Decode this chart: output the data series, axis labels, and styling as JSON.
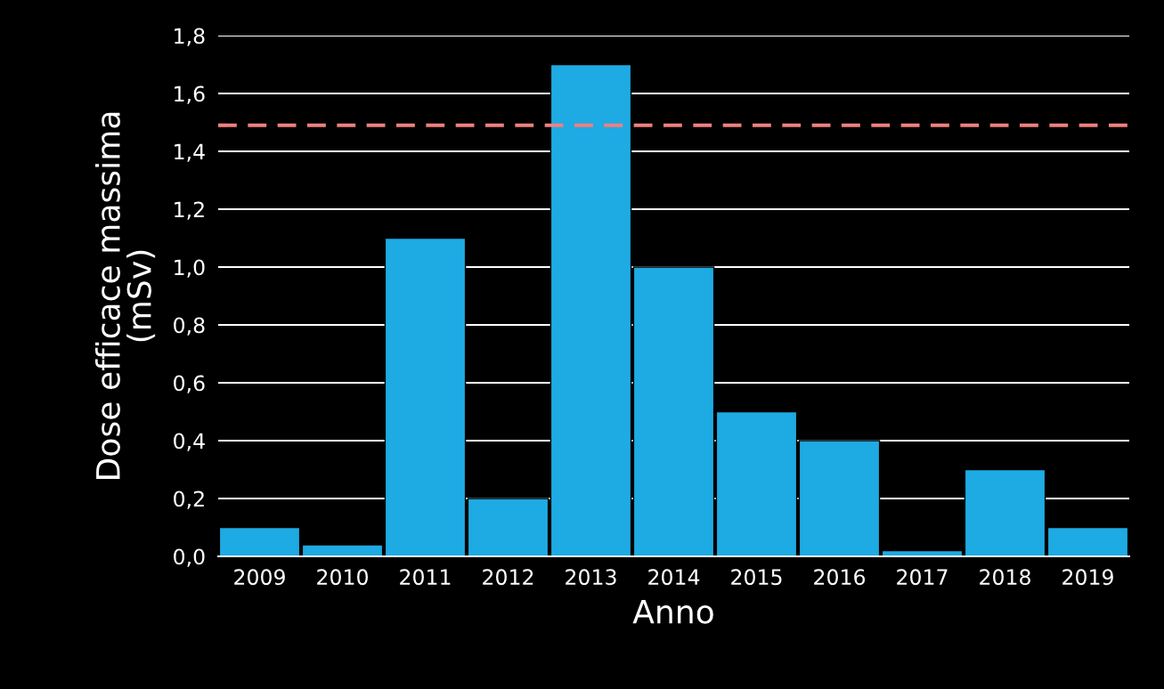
{
  "chart_data": {
    "type": "bar",
    "xlabel": "Anno",
    "ylabel": "Dose efficace massima\n(mSv)",
    "categories": [
      "2009",
      "2010",
      "2011",
      "2012",
      "2013",
      "2014",
      "2015",
      "2016",
      "2017",
      "2018",
      "2019"
    ],
    "values": [
      0.1,
      0.04,
      1.1,
      0.2,
      1.7,
      1.0,
      0.5,
      0.4,
      0.02,
      0.3,
      0.1
    ],
    "color": "#1eaae2",
    "ylim": [
      0,
      1.8
    ],
    "yticks": [
      {
        "value": 0,
        "label": "0,0"
      },
      {
        "value": 0.2,
        "label": "0,2"
      },
      {
        "value": 0.4,
        "label": "0,4"
      },
      {
        "value": 0.6,
        "label": "0,6"
      },
      {
        "value": 0.8,
        "label": "0,8"
      },
      {
        "value": 1.0,
        "label": "1,0"
      },
      {
        "value": 1.2,
        "label": "1,2"
      },
      {
        "value": 1.4,
        "label": "1,4"
      },
      {
        "value": 1.6,
        "label": "1,6"
      },
      {
        "value": 1.8,
        "label": "1,8"
      }
    ],
    "ref_lines": [
      {
        "axis": "y",
        "value": 1.49,
        "color": "#f08080",
        "line_style": "dashed"
      }
    ],
    "grid": "y",
    "legend": false
  }
}
